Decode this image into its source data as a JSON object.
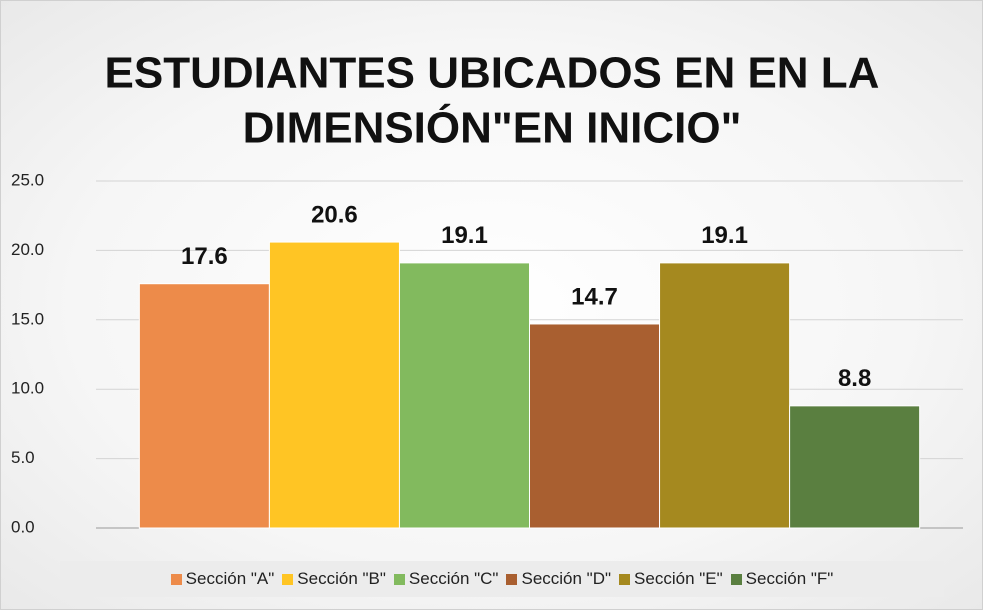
{
  "chart_data": {
    "type": "bar",
    "title": [
      "ESTUDIANTES UBICADOS EN EN LA",
      "DIMENSIÓN\"EN INICIO\""
    ],
    "categories": [
      null
    ],
    "series": [
      {
        "name": "Sección \"A\"",
        "color": "#ed8b4a",
        "values": [
          17.6
        ]
      },
      {
        "name": "Sección \"B\"",
        "color": "#ffc524",
        "values": [
          20.6
        ]
      },
      {
        "name": "Sección \"C\"",
        "color": "#82ba5e",
        "values": [
          19.1
        ]
      },
      {
        "name": "Sección \"D\"",
        "color": "#a95f30",
        "values": [
          14.7
        ]
      },
      {
        "name": "Sección \"E\"",
        "color": "#a5891f",
        "values": [
          19.1
        ]
      },
      {
        "name": "Sección \"F\"",
        "color": "#5a7f40",
        "values": [
          8.8
        ]
      }
    ],
    "ylim": [
      0,
      25
    ],
    "yticks": [
      {
        "value": 0,
        "label": "0.0"
      },
      {
        "value": 5,
        "label": "5.0"
      },
      {
        "value": 10,
        "label": "10.0"
      },
      {
        "value": 15,
        "label": "15.0"
      },
      {
        "value": 20,
        "label": "20.0"
      },
      {
        "value": 25,
        "label": "25.0"
      }
    ],
    "grid": true,
    "legend": "bottom"
  }
}
